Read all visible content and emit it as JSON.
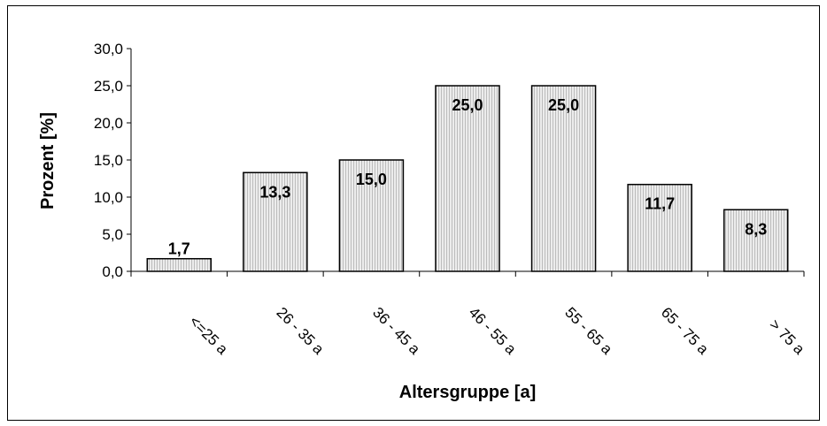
{
  "chart_data": {
    "type": "bar",
    "title": "",
    "xlabel": "Altersgruppe [a]",
    "ylabel": "Prozent [%]",
    "ylim": [
      0,
      30
    ],
    "yticks": [
      "0,0",
      "5,0",
      "10,0",
      "15,0",
      "20,0",
      "25,0",
      "30,0"
    ],
    "categories": [
      "<=25 a",
      "26 - 35 a",
      "36 - 45 a",
      "46 - 55 a",
      "55 - 65 a",
      "65 - 75 a",
      "> 75 a"
    ],
    "values": [
      1.7,
      13.3,
      15.0,
      25.0,
      25.0,
      11.7,
      8.3
    ],
    "value_labels": [
      "1,7",
      "13,3",
      "15,0",
      "25,0",
      "25,0",
      "11,7",
      "8,3"
    ],
    "grid": false,
    "legend": "none",
    "colors": {
      "bar_fill": "#e6e6e6",
      "bar_stroke": "#000000",
      "hatch": "#b8b8b8"
    }
  }
}
